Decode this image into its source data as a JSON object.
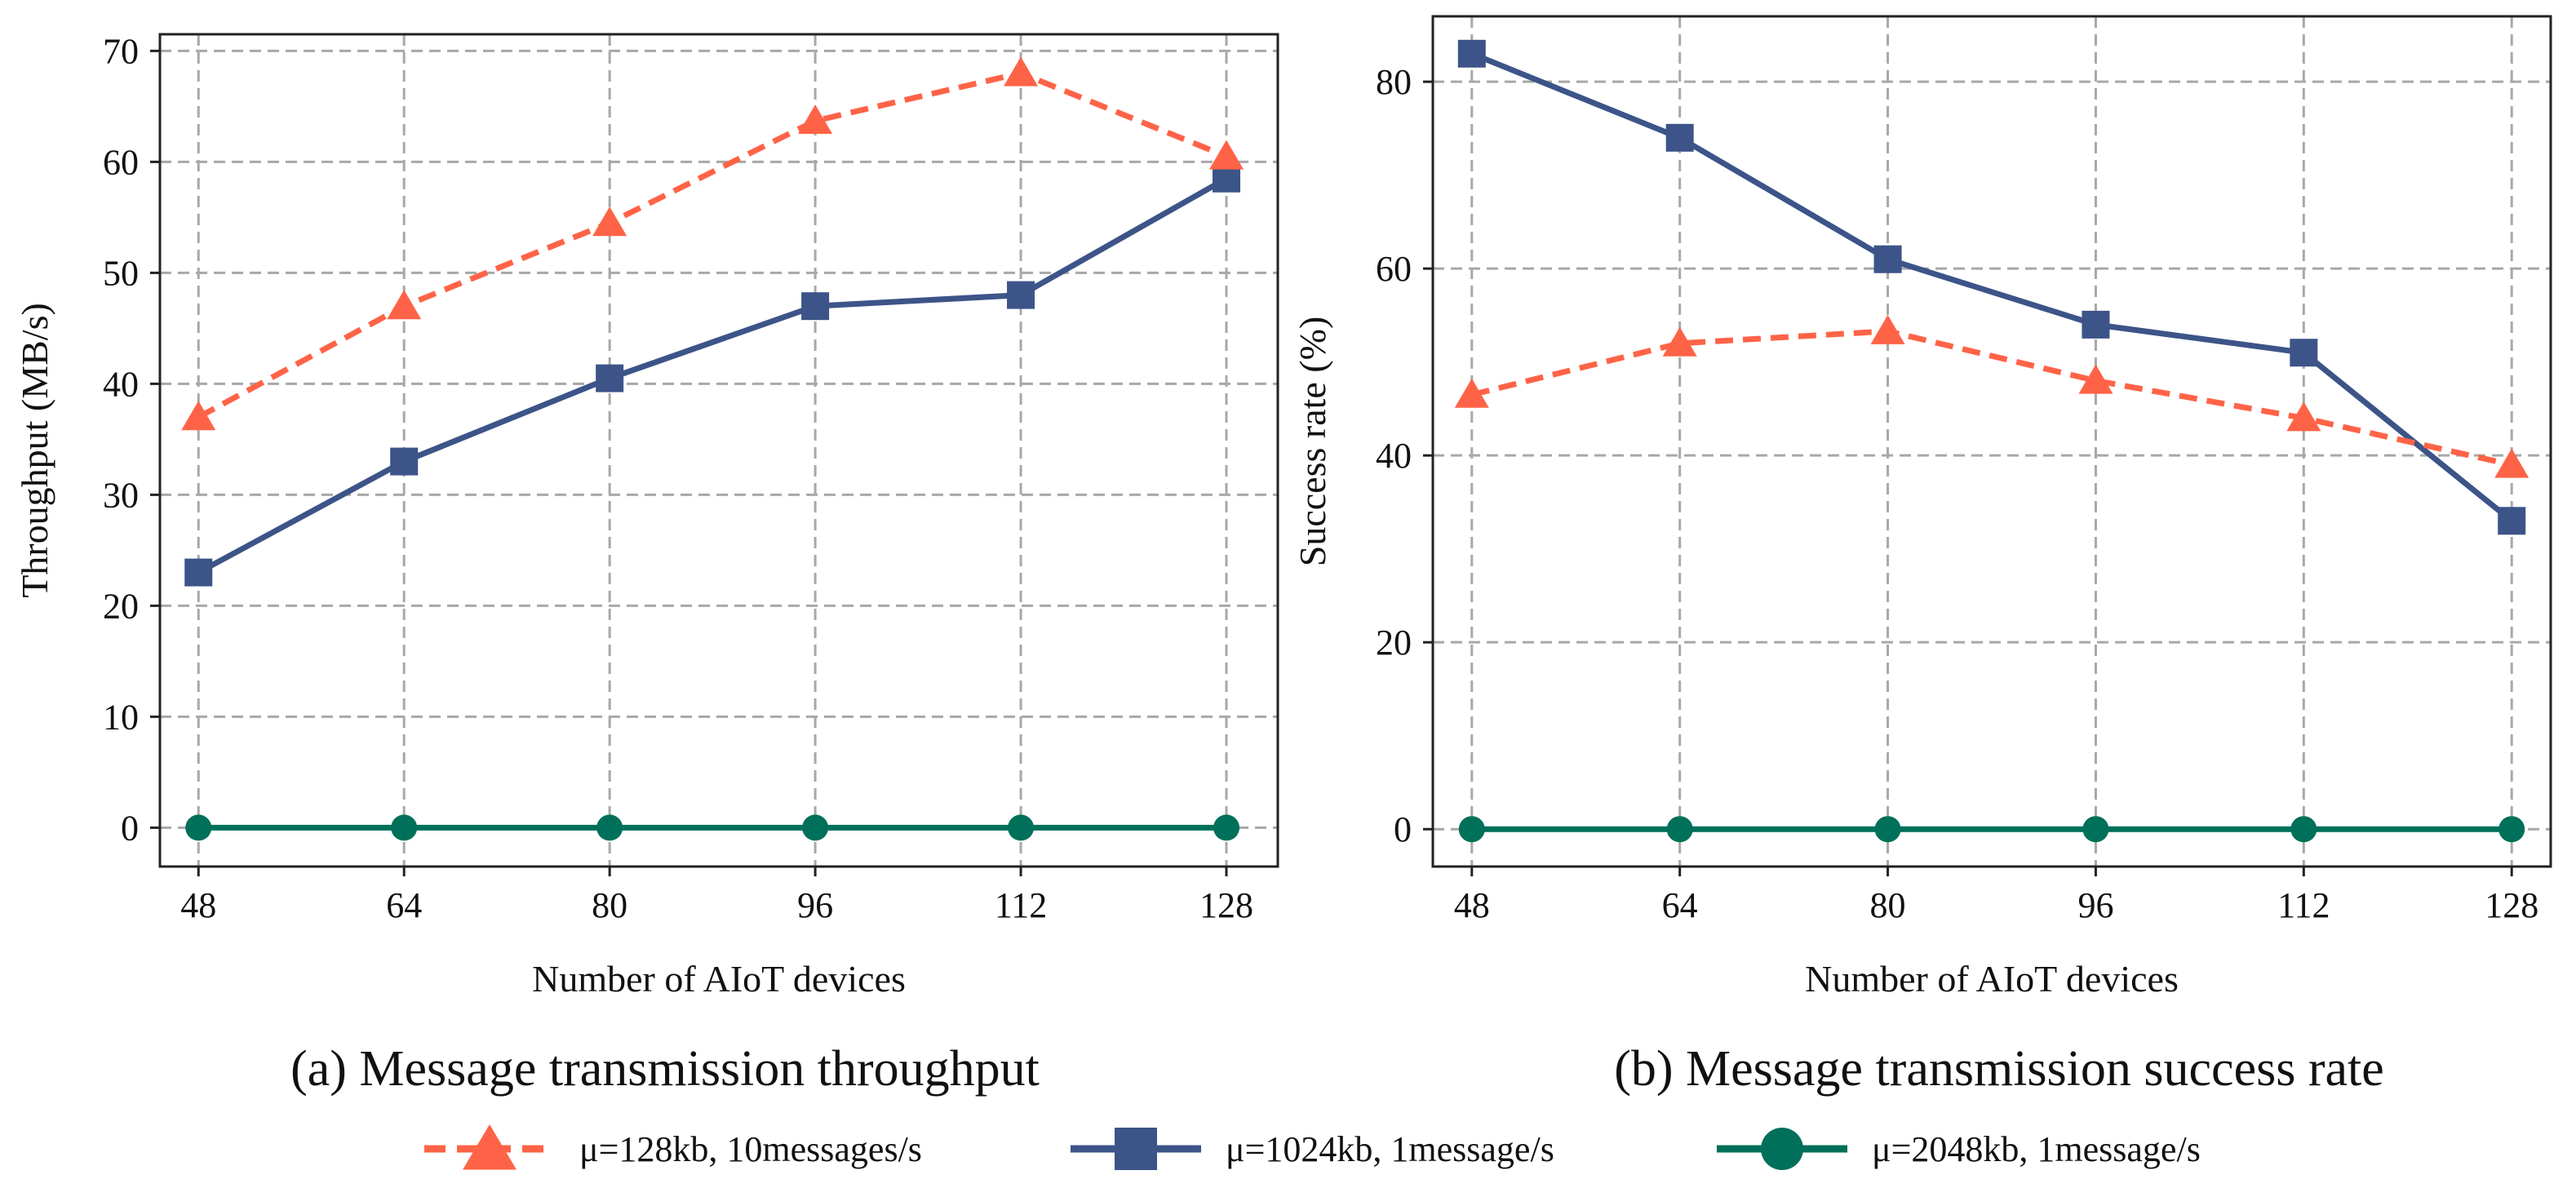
{
  "colors": {
    "series_a": "#FF6347",
    "series_b": "#3C5488",
    "series_c": "#00705A",
    "grid": "#A8A8A8",
    "axis": "#222222"
  },
  "legend": {
    "items": [
      {
        "label": "μ=128kb, 10messages/s",
        "marker": "triangle",
        "color": "#FF6347",
        "dash": true
      },
      {
        "label": "μ=1024kb, 1message/s",
        "marker": "square",
        "color": "#3C5488",
        "dash": false
      },
      {
        "label": "μ=2048kb, 1message/s",
        "marker": "circle",
        "color": "#00705A",
        "dash": false
      }
    ],
    "placement": "bottom-center"
  },
  "chart_data": [
    {
      "id": "a",
      "type": "line",
      "caption": "(a) Message transmission throughput",
      "xlabel": "Number of AIoT devices",
      "ylabel": "Throughput (MB/s)",
      "x": [
        48,
        64,
        80,
        96,
        112,
        128
      ],
      "xticks": [
        "48",
        "64",
        "80",
        "96",
        "112",
        "128"
      ],
      "yticks": [
        "0",
        "10",
        "20",
        "30",
        "40",
        "50",
        "60",
        "70"
      ],
      "xlim": [
        45,
        132
      ],
      "ylim": [
        -3.5,
        71.5
      ],
      "grid": true,
      "series": [
        {
          "name": "μ=128kb, 10messages/s",
          "values": [
            37,
            47,
            54.5,
            63.7,
            68,
            60.5
          ]
        },
        {
          "name": "μ=1024kb, 1message/s",
          "values": [
            23,
            33,
            40.5,
            47,
            48,
            58.5
          ]
        },
        {
          "name": "μ=2048kb, 1message/s",
          "values": [
            0,
            0,
            0,
            0,
            0,
            0
          ]
        }
      ]
    },
    {
      "id": "b",
      "type": "line",
      "caption": "(b) Message transmission success rate",
      "xlabel": "Number of AIoT devices",
      "ylabel": "Success rate (%)",
      "x": [
        48,
        64,
        80,
        96,
        112,
        128
      ],
      "xticks": [
        "48",
        "64",
        "80",
        "96",
        "112",
        "128"
      ],
      "yticks": [
        "0",
        "20",
        "40",
        "60",
        "80"
      ],
      "xlim": [
        45,
        131
      ],
      "ylim": [
        -4,
        87
      ],
      "grid": true,
      "series": [
        {
          "name": "μ=128kb, 10messages/s",
          "values": [
            46.5,
            52,
            53.3,
            48,
            44,
            39
          ]
        },
        {
          "name": "μ=1024kb, 1message/s",
          "values": [
            83,
            74,
            61,
            54,
            51,
            33
          ]
        },
        {
          "name": "μ=2048kb, 1message/s",
          "values": [
            0,
            0,
            0,
            0,
            0,
            0
          ]
        }
      ]
    }
  ]
}
